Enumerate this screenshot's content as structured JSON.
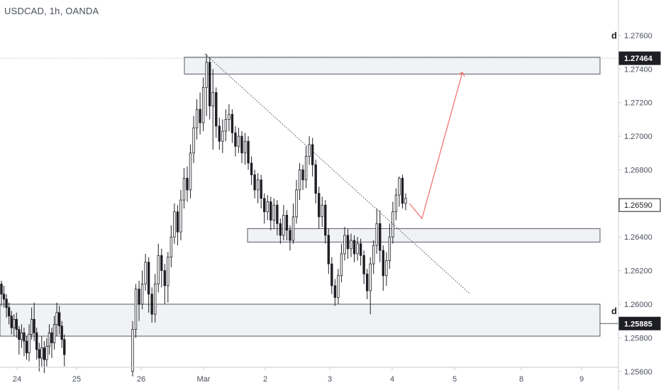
{
  "title": "USDCAD, 1h, OANDA",
  "chart_data": {
    "type": "candlestick",
    "symbol": "USDCAD",
    "timeframe": "1h",
    "source": "OANDA",
    "y_ticks": [
      "1.27600",
      "1.27400",
      "1.27200",
      "1.27000",
      "1.26800",
      "1.26590",
      "1.26400",
      "1.26200",
      "1.26000",
      "1.25800",
      "1.25600"
    ],
    "x_ticks": [
      "24",
      "25",
      "26",
      "Mar",
      "2",
      "3",
      "4",
      "5",
      "8",
      "9"
    ],
    "ylim": [
      1.2556,
      1.2775
    ],
    "price_badges": [
      "1.27464",
      "1.26590",
      "1.25885"
    ],
    "zone_labels": [
      "d",
      "d"
    ],
    "zones": [
      {
        "from_x": "26",
        "to_x": "9",
        "low": 1.2737,
        "high": 1.2747
      },
      {
        "from_x": "2",
        "to_x": "9",
        "low": 1.2637,
        "high": 1.2645
      },
      {
        "from_x": "23",
        "to_x": "9",
        "low": 1.2581,
        "high": 1.26
      }
    ],
    "trendline": {
      "start": [
        289,
        1.2749
      ],
      "end": [
        663,
        1.2606
      ]
    },
    "projection": [
      [
        577,
        1.266
      ],
      [
        595,
        1.2651
      ],
      [
        652,
        1.2738
      ]
    ],
    "candles": [
      [
        1.2612,
        1.2606,
        1.2614,
        1.2599
      ],
      [
        1.2606,
        1.2603,
        1.2611,
        1.2598
      ],
      [
        1.2603,
        1.2598,
        1.2606,
        1.2592
      ],
      [
        1.2598,
        1.2593,
        1.2601,
        1.2588
      ],
      [
        1.2593,
        1.2586,
        1.2596,
        1.2582
      ],
      [
        1.2586,
        1.2591,
        1.2594,
        1.2581
      ],
      [
        1.2591,
        1.2585,
        1.2595,
        1.258
      ],
      [
        1.2585,
        1.2579,
        1.2587,
        1.257
      ],
      [
        1.2579,
        1.2583,
        1.2588,
        1.2574
      ],
      [
        1.2583,
        1.2578,
        1.2586,
        1.2569
      ],
      [
        1.2578,
        1.2571,
        1.2581,
        1.2567
      ],
      [
        1.2571,
        1.2582,
        1.2588,
        1.2566
      ],
      [
        1.2582,
        1.2591,
        1.2598,
        1.2579
      ],
      [
        1.2591,
        1.2583,
        1.2601,
        1.2578
      ],
      [
        1.2583,
        1.2573,
        1.2586,
        1.2567
      ],
      [
        1.2573,
        1.2568,
        1.2577,
        1.256
      ],
      [
        1.2568,
        1.2574,
        1.2581,
        1.2563
      ],
      [
        1.2574,
        1.2567,
        1.2578,
        1.2559
      ],
      [
        1.2567,
        1.2575,
        1.258,
        1.2563
      ],
      [
        1.2575,
        1.2583,
        1.2588,
        1.257
      ],
      [
        1.2583,
        1.2577,
        1.2586,
        1.2568
      ],
      [
        1.2577,
        1.2588,
        1.2593,
        1.2573
      ],
      [
        1.2588,
        1.2595,
        1.2601,
        1.2581
      ],
      [
        1.2595,
        1.2587,
        1.2599,
        1.2582
      ],
      [
        1.2587,
        1.2579,
        1.259,
        1.2574
      ],
      [
        1.2579,
        1.257,
        1.2582,
        1.2563
      ],
      [
        1.256,
        1.2585,
        1.259,
        1.2557
      ],
      [
        1.2585,
        1.2609,
        1.2612,
        1.258
      ],
      [
        1.2609,
        1.26,
        1.2614,
        1.259
      ],
      [
        1.26,
        1.2612,
        1.262,
        1.2597
      ],
      [
        1.2612,
        1.2625,
        1.263,
        1.2608
      ],
      [
        1.2625,
        1.2606,
        1.2628,
        1.2595
      ],
      [
        1.2606,
        1.2594,
        1.261,
        1.2589
      ],
      [
        1.2594,
        1.2612,
        1.2618,
        1.2589
      ],
      [
        1.2612,
        1.2629,
        1.2636,
        1.2607
      ],
      [
        1.2629,
        1.262,
        1.2633,
        1.261
      ],
      [
        1.262,
        1.2611,
        1.2624,
        1.26
      ],
      [
        1.2611,
        1.2628,
        1.2631,
        1.2601
      ],
      [
        1.2628,
        1.264,
        1.2647,
        1.2622
      ],
      [
        1.264,
        1.2655,
        1.266,
        1.2636
      ],
      [
        1.2655,
        1.2643,
        1.2659,
        1.2635
      ],
      [
        1.2643,
        1.2662,
        1.2668,
        1.2638
      ],
      [
        1.2662,
        1.2675,
        1.2681,
        1.2657
      ],
      [
        1.2675,
        1.2668,
        1.2682,
        1.2661
      ],
      [
        1.2668,
        1.269,
        1.2695,
        1.2663
      ],
      [
        1.269,
        1.2705,
        1.2712,
        1.2684
      ],
      [
        1.2705,
        1.2716,
        1.2722,
        1.2698
      ],
      [
        1.2716,
        1.2708,
        1.2726,
        1.2701
      ],
      [
        1.2708,
        1.2729,
        1.2735,
        1.2703
      ],
      [
        1.2729,
        1.2744,
        1.2749,
        1.2712
      ],
      [
        1.2744,
        1.2718,
        1.2747,
        1.271
      ],
      [
        1.2718,
        1.2726,
        1.274,
        1.2692
      ],
      [
        1.2726,
        1.2706,
        1.2729,
        1.2699
      ],
      [
        1.2706,
        1.2697,
        1.2711,
        1.2692
      ],
      [
        1.2697,
        1.2703,
        1.271,
        1.269
      ],
      [
        1.2703,
        1.271,
        1.2716,
        1.2697
      ],
      [
        1.271,
        1.2713,
        1.2719,
        1.2703
      ],
      [
        1.2713,
        1.2702,
        1.2716,
        1.2696
      ],
      [
        1.2702,
        1.2694,
        1.2706,
        1.2688
      ],
      [
        1.2694,
        1.27,
        1.2705,
        1.269
      ],
      [
        1.27,
        1.269,
        1.2703,
        1.2684
      ],
      [
        1.269,
        1.2697,
        1.2702,
        1.2683
      ],
      [
        1.2697,
        1.2684,
        1.27,
        1.268
      ],
      [
        1.2684,
        1.2677,
        1.2688,
        1.2671
      ],
      [
        1.2677,
        1.2668,
        1.268,
        1.2663
      ],
      [
        1.2668,
        1.2674,
        1.2678,
        1.266
      ],
      [
        1.2674,
        1.2663,
        1.2677,
        1.2657
      ],
      [
        1.2663,
        1.2655,
        1.2666,
        1.2648
      ],
      [
        1.2655,
        1.2661,
        1.2665,
        1.265
      ],
      [
        1.2661,
        1.265,
        1.2664,
        1.2644
      ],
      [
        1.265,
        1.2659,
        1.2663,
        1.2645
      ],
      [
        1.2659,
        1.2648,
        1.2662,
        1.2641
      ],
      [
        1.2648,
        1.2641,
        1.2651,
        1.2636
      ],
      [
        1.2641,
        1.2653,
        1.2659,
        1.2638
      ],
      [
        1.2653,
        1.2644,
        1.2656,
        1.2638
      ],
      [
        1.2644,
        1.2638,
        1.2647,
        1.2632
      ],
      [
        1.2638,
        1.2652,
        1.266,
        1.2636
      ],
      [
        1.2652,
        1.2668,
        1.2674,
        1.2648
      ],
      [
        1.2668,
        1.268,
        1.2684,
        1.2662
      ],
      [
        1.268,
        1.2674,
        1.2683,
        1.2668
      ],
      [
        1.2674,
        1.2688,
        1.2694,
        1.2669
      ],
      [
        1.2688,
        1.2695,
        1.27,
        1.2683
      ],
      [
        1.2695,
        1.2683,
        1.2699,
        1.2676
      ],
      [
        1.2683,
        1.2666,
        1.2686,
        1.266
      ],
      [
        1.2666,
        1.2652,
        1.267,
        1.2645
      ],
      [
        1.2652,
        1.2659,
        1.2664,
        1.2646
      ],
      [
        1.2659,
        1.2641,
        1.2662,
        1.2636
      ],
      [
        1.2641,
        1.2624,
        1.2645,
        1.2618
      ],
      [
        1.2624,
        1.2611,
        1.2628,
        1.2606
      ],
      [
        1.2611,
        1.2604,
        1.2615,
        1.2599
      ],
      [
        1.2604,
        1.2617,
        1.2621,
        1.26
      ],
      [
        1.2617,
        1.263,
        1.2636,
        1.2613
      ],
      [
        1.263,
        1.2641,
        1.2646,
        1.2626
      ],
      [
        1.2641,
        1.2633,
        1.2645,
        1.2627
      ],
      [
        1.2633,
        1.2638,
        1.2642,
        1.2628
      ],
      [
        1.2638,
        1.263,
        1.2641,
        1.2625
      ],
      [
        1.263,
        1.2636,
        1.264,
        1.2626
      ],
      [
        1.2636,
        1.2629,
        1.2639,
        1.2623
      ],
      [
        1.2629,
        1.2618,
        1.2632,
        1.2612
      ],
      [
        1.2618,
        1.2608,
        1.2621,
        1.2603
      ],
      [
        1.2608,
        1.2624,
        1.2628,
        1.2594
      ],
      [
        1.2624,
        1.2635,
        1.2638,
        1.2618
      ],
      [
        1.2635,
        1.2648,
        1.2657,
        1.263
      ],
      [
        1.2648,
        1.2632,
        1.2656,
        1.2625
      ],
      [
        1.2632,
        1.2617,
        1.2635,
        1.2608
      ],
      [
        1.2617,
        1.2626,
        1.2631,
        1.2611
      ],
      [
        1.2626,
        1.264,
        1.2648,
        1.2621
      ],
      [
        1.264,
        1.2655,
        1.2661,
        1.2636
      ],
      [
        1.2655,
        1.2665,
        1.2669,
        1.265
      ],
      [
        1.2665,
        1.2675,
        1.2676,
        1.2658
      ],
      [
        1.2675,
        1.266,
        1.2677,
        1.2657
      ],
      [
        1.266,
        1.2663,
        1.2666,
        1.2656
      ]
    ]
  }
}
